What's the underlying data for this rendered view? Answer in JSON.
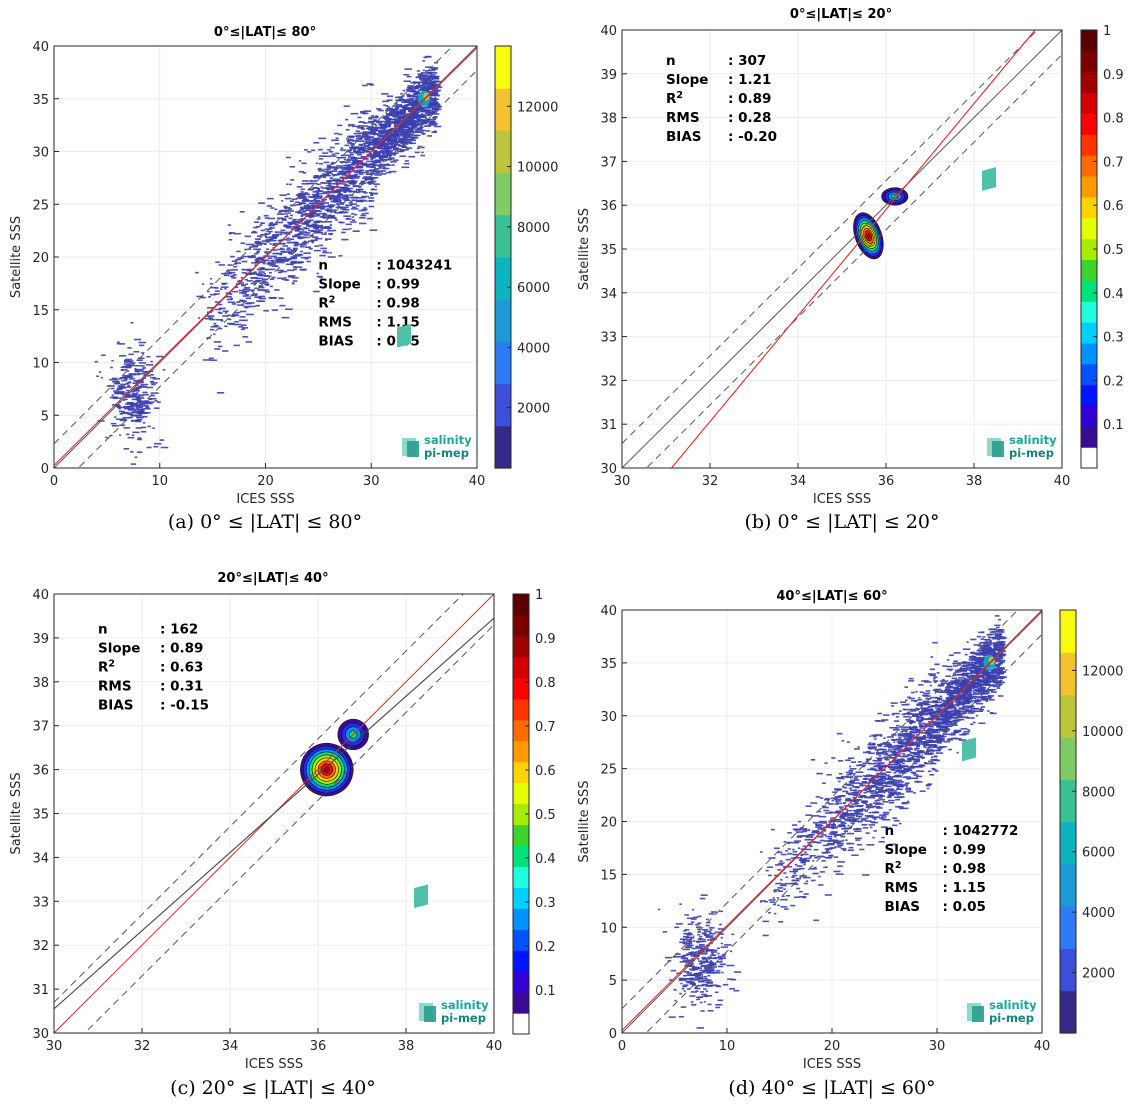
{
  "chart_data": [
    {
      "type": "scatter",
      "title": "0°≤|LAT|≤ 80°",
      "caption": "(a) 0° ≤ |LAT| ≤ 80°",
      "xlabel": "ICES SSS",
      "ylabel": "Satellite SSS",
      "xlim": [
        0,
        40
      ],
      "ylim": [
        0,
        40
      ],
      "xticks": [
        0,
        10,
        20,
        30,
        40
      ],
      "yticks": [
        0,
        5,
        10,
        15,
        20,
        25,
        30,
        35,
        40
      ],
      "grid": true,
      "density_style": "point-density",
      "colorbar": {
        "min": 0,
        "max": 14000,
        "ticks": [
          2000,
          4000,
          6000,
          8000,
          10000,
          12000
        ],
        "colormap": "parula"
      },
      "regression_line": {
        "slope": 0.99,
        "intercept": 0.25,
        "color": "#e8262a"
      },
      "band_offset": 2.3,
      "stats": [
        {
          "label": "n",
          "value": ": 1043241"
        },
        {
          "label": "Slope",
          "value": ": 0.99"
        },
        {
          "label": "R",
          "sup": "2",
          "value": ": 0.98"
        },
        {
          "label": "RMS",
          "value": ": 1.15"
        },
        {
          "label": "BIAS",
          "value": ": 0.05"
        }
      ],
      "logo": {
        "line1": "salinity",
        "line2": "pi-mep"
      }
    },
    {
      "type": "contour",
      "title": "0°≤|LAT|≤ 20°",
      "caption": "(b) 0° ≤ |LAT| ≤ 20°",
      "xlabel": "ICES SSS",
      "ylabel": "Satellite SSS",
      "xlim": [
        30,
        40
      ],
      "ylim": [
        30,
        40
      ],
      "xticks": [
        30,
        32,
        34,
        36,
        38,
        40
      ],
      "yticks": [
        30,
        31,
        32,
        33,
        34,
        35,
        36,
        37,
        38,
        39,
        40
      ],
      "grid": true,
      "density_style": "filled-contour",
      "colorbar": {
        "min": 0,
        "max": 1,
        "ticks": [
          0.1,
          0.2,
          0.3,
          0.4,
          0.5,
          0.6,
          0.7,
          0.8,
          0.9,
          1
        ],
        "colormap": "jet"
      },
      "regression_line": {
        "slope": 1.21,
        "intercept": -7.66,
        "color": "#e8262a"
      },
      "band_offset": 0.56,
      "blobs": [
        {
          "cx": 35.6,
          "cy": 35.3,
          "rx": 0.3,
          "ry": 0.55,
          "rot": -20
        },
        {
          "cx": 36.2,
          "cy": 36.2,
          "rx": 0.3,
          "ry": 0.2,
          "rot": 0
        }
      ],
      "stats": [
        {
          "label": "n",
          "value": ": 307"
        },
        {
          "label": "Slope",
          "value": ": 1.21"
        },
        {
          "label": "R",
          "sup": "2",
          "value": ": 0.89"
        },
        {
          "label": "RMS",
          "value": ": 0.28"
        },
        {
          "label": "BIAS",
          "value": ": -0.20"
        }
      ],
      "logo": {
        "line1": "salinity",
        "line2": "pi-mep"
      }
    },
    {
      "type": "contour",
      "title": "20°≤|LAT|≤ 40°",
      "caption": "(c) 20° ≤ |LAT| ≤ 40°",
      "xlabel": "ICES SSS",
      "ylabel": "Satellite SSS",
      "xlim": [
        30,
        40
      ],
      "ylim": [
        30,
        40
      ],
      "xticks": [
        30,
        32,
        34,
        36,
        38,
        40
      ],
      "yticks": [
        30,
        31,
        32,
        33,
        34,
        35,
        36,
        37,
        38,
        39,
        40
      ],
      "grid": true,
      "density_style": "filled-contour",
      "colorbar": {
        "min": 0,
        "max": 1,
        "ticks": [
          0.1,
          0.2,
          0.3,
          0.4,
          0.5,
          0.6,
          0.7,
          0.8,
          0.9,
          1
        ],
        "colormap": "jet"
      },
      "regression_line": {
        "slope": 0.89,
        "intercept": 3.85,
        "color": "#444444"
      },
      "band_offset": 0.7,
      "blobs": [
        {
          "cx": 36.2,
          "cy": 36.0,
          "rx": 0.6,
          "ry": 0.6,
          "rot": -30
        },
        {
          "cx": 36.8,
          "cy": 36.8,
          "rx": 0.35,
          "ry": 0.35,
          "rot": 0
        }
      ],
      "stats": [
        {
          "label": "n",
          "value": ": 162"
        },
        {
          "label": "Slope",
          "value": ": 0.89"
        },
        {
          "label": "R",
          "sup": "2",
          "value": ": 0.63"
        },
        {
          "label": "RMS",
          "value": ": 0.31"
        },
        {
          "label": "BIAS",
          "value": ": -0.15"
        }
      ],
      "logo": {
        "line1": "salinity",
        "line2": "pi-mep"
      }
    },
    {
      "type": "scatter",
      "title": "40°≤|LAT|≤ 60°",
      "caption": "(d) 40° ≤ |LAT| ≤ 60°",
      "xlabel": "ICES SSS",
      "ylabel": "Satellite SSS",
      "xlim": [
        0,
        40
      ],
      "ylim": [
        0,
        40
      ],
      "xticks": [
        0,
        10,
        20,
        30,
        40
      ],
      "yticks": [
        0,
        5,
        10,
        15,
        20,
        25,
        30,
        35,
        40
      ],
      "grid": true,
      "density_style": "point-density",
      "colorbar": {
        "min": 0,
        "max": 14000,
        "ticks": [
          2000,
          4000,
          6000,
          8000,
          10000,
          12000
        ],
        "colormap": "parula"
      },
      "regression_line": {
        "slope": 0.99,
        "intercept": 0.25,
        "color": "#e8262a"
      },
      "band_offset": 2.3,
      "stats": [
        {
          "label": "n",
          "value": ": 1042772"
        },
        {
          "label": "Slope",
          "value": ": 0.99"
        },
        {
          "label": "R",
          "sup": "2",
          "value": ": 0.98"
        },
        {
          "label": "RMS",
          "value": ": 1.15"
        },
        {
          "label": "BIAS",
          "value": ": 0.05"
        }
      ],
      "logo": {
        "line1": "salinity",
        "line2": "pi-mep"
      }
    }
  ]
}
